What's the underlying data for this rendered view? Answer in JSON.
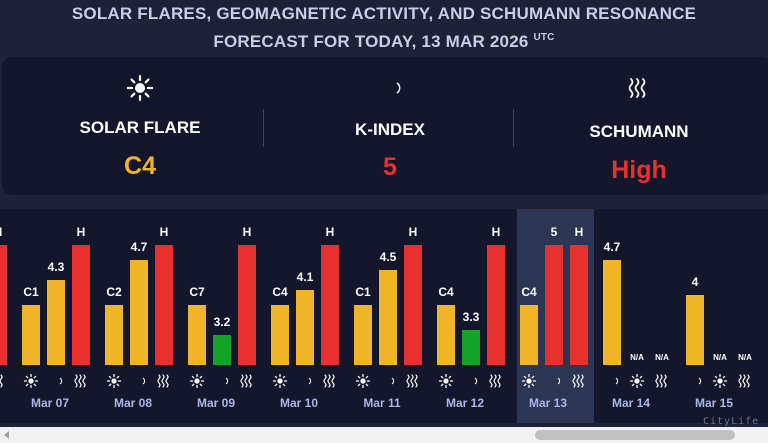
{
  "header": {
    "line1": "SOLAR FLARES, GEOMAGNETIC ACTIVITY, AND SCHUMANN RESONANCE",
    "line2": "FORECAST FOR TODAY, 13 MAR 2026",
    "tz": "UTC"
  },
  "today": {
    "solar_flare": {
      "label": "SOLAR FLARE",
      "value": "C4",
      "icon": "sun-icon",
      "color": "#f0b429"
    },
    "k_index": {
      "label": "K-INDEX",
      "value": "5",
      "icon": "moon-icon",
      "color": "#e8302e"
    },
    "schumann": {
      "label": "SCHUMANN",
      "value": "High",
      "icon": "waves-icon",
      "color": "#e8302e"
    }
  },
  "colors": {
    "yellow": "#f0b429",
    "red": "#e8302e",
    "green": "#12a327",
    "panel_dark": "#14172b",
    "panel_highlight": "#2c3552"
  },
  "chart_data": {
    "type": "bar",
    "categories": [
      "Mar 07",
      "Mar 08",
      "Mar 09",
      "Mar 10",
      "Mar 11",
      "Mar 12",
      "Mar 13",
      "Mar 14",
      "Mar 15"
    ],
    "highlight": "Mar 13",
    "series": [
      {
        "icon": "sun-icon",
        "labels": [
          "C1",
          "C2",
          "C7",
          "C4",
          "C1",
          "C4",
          "C4",
          "N/A",
          "N/A"
        ],
        "values": [
          2,
          2,
          2,
          2,
          2,
          2,
          2,
          null,
          null
        ]
      },
      {
        "icon": "moon-icon",
        "labels": [
          "4.3",
          "4.7",
          "3.2",
          "4.1",
          "4.5",
          "3.3",
          "5",
          "4.7",
          "4"
        ],
        "values": [
          4.3,
          4.7,
          3.2,
          4.1,
          4.5,
          3.3,
          5,
          4.7,
          4
        ]
      },
      {
        "icon": "waves-icon",
        "labels": [
          "H",
          "H",
          "H",
          "H",
          "H",
          "H",
          "H",
          "N/A",
          "N/A"
        ],
        "values": [
          3,
          3,
          3,
          3,
          3,
          3,
          3,
          null,
          null
        ]
      }
    ],
    "partial_left": {
      "schumann_label": "H",
      "schumann_value": 3
    }
  },
  "watermark": "CityLife"
}
